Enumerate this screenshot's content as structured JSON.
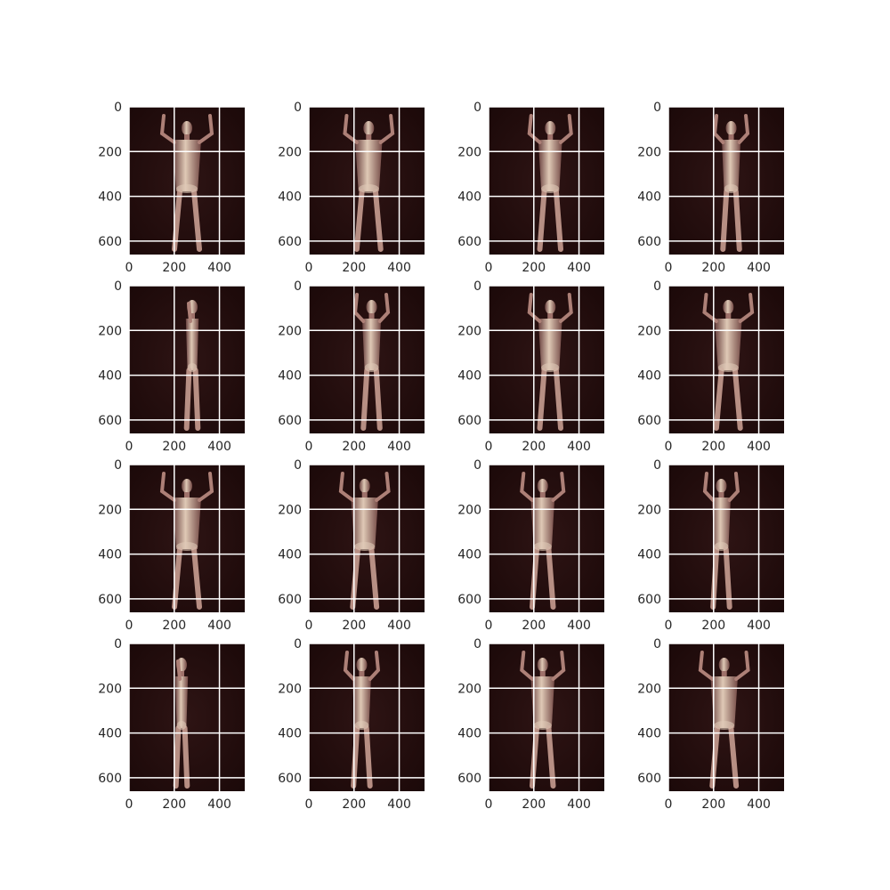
{
  "chart_data": {
    "type": "image-grid",
    "rows": 4,
    "cols": 4,
    "xlim": [
      0,
      512
    ],
    "ylim": [
      660,
      0
    ],
    "xticks": [
      0,
      200,
      400
    ],
    "yticks": [
      0,
      200,
      400,
      600
    ],
    "xtick_labels": [
      "0",
      "200",
      "400"
    ],
    "ytick_labels": [
      "0",
      "200",
      "400",
      "600"
    ],
    "ytick_labels_shown": [
      "0",
      "200",
      "400",
      "600"
    ],
    "grid": true,
    "image_content": "full-body scan silhouettes",
    "colormap": "pink",
    "colors": {
      "background": "#1f0a0a",
      "body_dim": "#6e4442",
      "body_mid": "#a97a72",
      "body_bright": "#efd9c4",
      "grid": "#ffffff"
    },
    "panels": [
      {
        "pose": "front-arms-up",
        "angle_deg": 0
      },
      {
        "pose": "rotated-arms-up",
        "angle_deg": 22.5
      },
      {
        "pose": "rotated-arms-up",
        "angle_deg": 45
      },
      {
        "pose": "side-arms-up",
        "angle_deg": 67.5
      },
      {
        "pose": "side",
        "angle_deg": 90
      },
      {
        "pose": "back-rotated-arms-up",
        "angle_deg": 112.5
      },
      {
        "pose": "back-rotated-arms-up",
        "angle_deg": 135
      },
      {
        "pose": "back-arms-up",
        "angle_deg": 157.5
      },
      {
        "pose": "back-arms-up",
        "angle_deg": 180
      },
      {
        "pose": "back-rotated-arms-up",
        "angle_deg": 202.5
      },
      {
        "pose": "back-rotated-arms-up",
        "angle_deg": 225
      },
      {
        "pose": "side-arms-up",
        "angle_deg": 247.5
      },
      {
        "pose": "side",
        "angle_deg": 270
      },
      {
        "pose": "side-arms-up",
        "angle_deg": 292.5
      },
      {
        "pose": "rotated-arms-up",
        "angle_deg": 315
      },
      {
        "pose": "front-arms-up",
        "angle_deg": 337.5
      }
    ]
  }
}
